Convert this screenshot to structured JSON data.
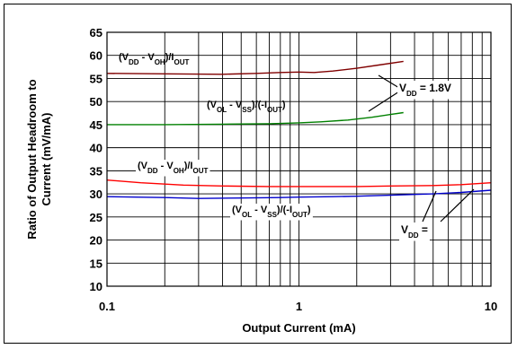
{
  "chart_data": {
    "type": "line",
    "xlabel": "Output Current (mA)",
    "ylabel": "Ratio of Output Headroom to Current (mV/mA)",
    "ylabel_lines": [
      "Ratio of Output Headroom to",
      "Current (mV/mA)"
    ],
    "x_scale": "log",
    "xlim": [
      0.1,
      10
    ],
    "ylim": [
      10,
      65
    ],
    "x_ticks": [
      {
        "value": 0.1,
        "label": "0.1"
      },
      {
        "value": 1,
        "label": "1"
      },
      {
        "value": 10,
        "label": "10"
      }
    ],
    "y_ticks": [
      10,
      15,
      20,
      25,
      30,
      35,
      40,
      45,
      50,
      55,
      60,
      65
    ],
    "grid": true,
    "series": [
      {
        "color": "#800000",
        "points": [
          [
            0.1,
            56.1
          ],
          [
            0.2,
            56.0
          ],
          [
            0.4,
            55.9
          ],
          [
            0.6,
            56.1
          ],
          [
            0.8,
            56.3
          ],
          [
            1.0,
            56.4
          ],
          [
            1.2,
            56.3
          ],
          [
            1.5,
            56.6
          ],
          [
            2.0,
            57.2
          ],
          [
            2.6,
            57.9
          ],
          [
            3.5,
            58.7
          ]
        ]
      },
      {
        "color": "#008000",
        "points": [
          [
            0.1,
            45.0
          ],
          [
            0.2,
            45.0
          ],
          [
            0.4,
            45.1
          ],
          [
            0.7,
            45.2
          ],
          [
            1.0,
            45.4
          ],
          [
            1.3,
            45.6
          ],
          [
            1.8,
            46.0
          ],
          [
            2.4,
            46.6
          ],
          [
            3.0,
            47.2
          ],
          [
            3.5,
            47.6
          ]
        ]
      },
      {
        "color": "#ff0000",
        "points": [
          [
            0.1,
            33.0
          ],
          [
            0.15,
            32.4
          ],
          [
            0.25,
            31.9
          ],
          [
            0.4,
            31.7
          ],
          [
            0.7,
            31.6
          ],
          [
            1.0,
            31.6
          ],
          [
            2.0,
            31.6
          ],
          [
            3.0,
            31.7
          ],
          [
            5.0,
            31.8
          ],
          [
            7.0,
            32.0
          ],
          [
            10.0,
            32.4
          ]
        ]
      },
      {
        "color": "#0000cc",
        "points": [
          [
            0.1,
            29.4
          ],
          [
            0.2,
            29.2
          ],
          [
            0.3,
            29.0
          ],
          [
            0.5,
            29.1
          ],
          [
            0.8,
            29.2
          ],
          [
            1.0,
            29.3
          ],
          [
            1.5,
            29.4
          ],
          [
            2.0,
            29.5
          ],
          [
            3.0,
            29.7
          ],
          [
            5.0,
            30.0
          ],
          [
            7.0,
            30.3
          ],
          [
            10.0,
            30.8
          ]
        ]
      }
    ],
    "annotations": [
      {
        "id": "top-vdd-voh",
        "parts": [
          {
            "text": "(V"
          },
          {
            "text": "DD",
            "sub": true
          },
          {
            "text": " - V"
          },
          {
            "text": "OH",
            "sub": true
          },
          {
            "text": ")/I"
          },
          {
            "text": "OUT",
            "sub": true
          }
        ]
      },
      {
        "id": "top-vol-vss",
        "parts": [
          {
            "text": "(V"
          },
          {
            "text": "OL",
            "sub": true
          },
          {
            "text": " - V"
          },
          {
            "text": "SS",
            "sub": true
          },
          {
            "text": ")/(-I"
          },
          {
            "text": "OUT",
            "sub": true
          },
          {
            "text": ")"
          }
        ]
      },
      {
        "id": "vdd-1v8",
        "parts": [
          {
            "text": "V"
          },
          {
            "text": "DD",
            "sub": true
          },
          {
            "text": " = 1.8V"
          }
        ]
      },
      {
        "id": "bottom-vdd-voh",
        "parts": [
          {
            "text": "(V"
          },
          {
            "text": "DD",
            "sub": true
          },
          {
            "text": " - V"
          },
          {
            "text": "OH",
            "sub": true
          },
          {
            "text": ")/I"
          },
          {
            "text": "OUT",
            "sub": true
          }
        ]
      },
      {
        "id": "bottom-vol-vss",
        "parts": [
          {
            "text": "(V"
          },
          {
            "text": "OL",
            "sub": true
          },
          {
            "text": " - V"
          },
          {
            "text": "SS",
            "sub": true
          },
          {
            "text": ")/(-I"
          },
          {
            "text": "OUT",
            "sub": true
          },
          {
            "text": ")"
          }
        ]
      },
      {
        "id": "vdd-second",
        "parts": [
          {
            "text": "V"
          },
          {
            "text": "DD",
            "sub": true
          },
          {
            "text": " ="
          }
        ]
      }
    ]
  }
}
